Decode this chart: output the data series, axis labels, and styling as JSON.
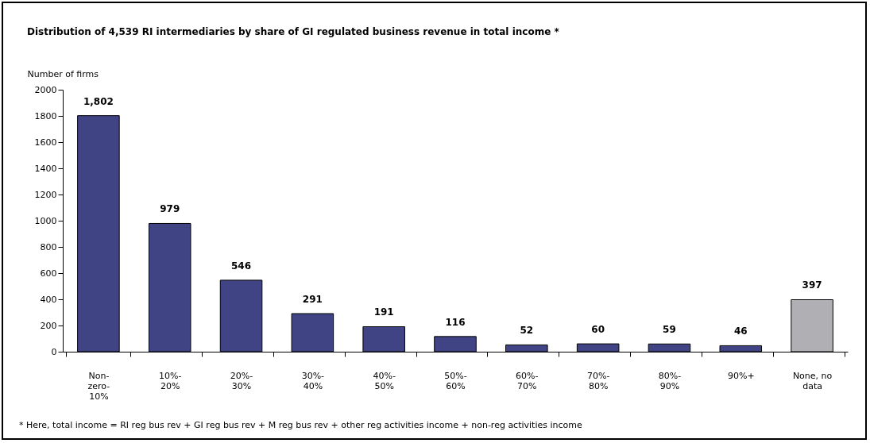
{
  "chart_data": {
    "type": "bar",
    "title": "Distribution of 4,539 RI intermediaries by share of GI regulated business revenue in total income *",
    "ylabel": "Number of firms",
    "categories": [
      "Non-zero-10%",
      "10%-20%",
      "20%-30%",
      "30%-40%",
      "40%-50%",
      "50%-60%",
      "60%-70%",
      "70%-80%",
      "80%-90%",
      "90%+",
      "None, no data"
    ],
    "values": [
      1802,
      979,
      546,
      291,
      191,
      116,
      52,
      60,
      59,
      46,
      397
    ],
    "value_labels": [
      "1,802",
      "979",
      "546",
      "291",
      "191",
      "116",
      "52",
      "60",
      "59",
      "46",
      "397"
    ],
    "colors": [
      "#404485",
      "#404485",
      "#404485",
      "#404485",
      "#404485",
      "#404485",
      "#404485",
      "#404485",
      "#404485",
      "#404485",
      "#b0b0b4"
    ],
    "ylim": [
      0,
      2000
    ],
    "yticks": [
      0,
      200,
      400,
      600,
      800,
      1000,
      1200,
      1400,
      1600,
      1800,
      2000
    ],
    "grid": false,
    "annotations": [
      "* Here, total income = RI reg bus rev + GI reg bus rev + M reg bus rev + other reg activities income + non-reg activities income"
    ]
  }
}
